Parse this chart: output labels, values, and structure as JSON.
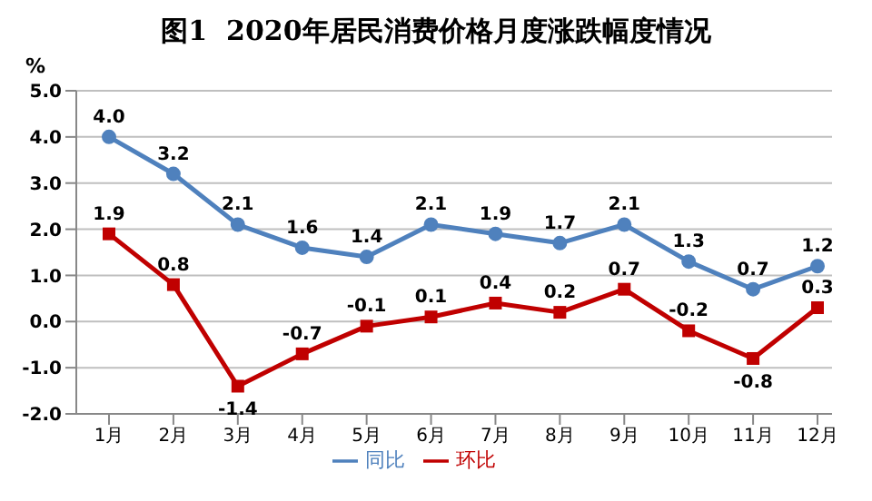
{
  "chart_data": {
    "type": "line",
    "title": "图1  2020年居民消费价格月度涨跌幅度情况",
    "ylabel": "%",
    "categories": [
      "1月",
      "2月",
      "3月",
      "4月",
      "5月",
      "6月",
      "7月",
      "8月",
      "9月",
      "10月",
      "11月",
      "12月"
    ],
    "series": [
      {
        "name": "同比",
        "color": "#4f81bd",
        "marker": "circle",
        "values": [
          4.0,
          3.2,
          2.1,
          1.6,
          1.4,
          2.1,
          1.9,
          1.7,
          2.1,
          1.3,
          0.7,
          1.2
        ],
        "value_labels": [
          "4.0",
          "3.2",
          "2.1",
          "1.6",
          "1.4",
          "2.1",
          "1.9",
          "1.7",
          "2.1",
          "1.3",
          "0.7",
          "1.2"
        ]
      },
      {
        "name": "环比",
        "color": "#c00000",
        "marker": "square",
        "values": [
          1.9,
          0.8,
          -1.4,
          -0.7,
          -0.1,
          0.1,
          0.4,
          0.2,
          0.7,
          -0.2,
          -0.8,
          0.3
        ],
        "value_labels": [
          "1.9",
          "0.8",
          "-1.4",
          "-0.7",
          "-0.1",
          "0.1",
          "0.4",
          "0.2",
          "0.7",
          "-0.2",
          "-0.8",
          "0.3"
        ]
      }
    ],
    "ylim": [
      -2.0,
      5.0
    ],
    "yticks": [
      {
        "value": -2,
        "label": "-2.0"
      },
      {
        "value": -1,
        "label": "-1.0"
      },
      {
        "value": 0,
        "label": "0.0"
      },
      {
        "value": 1,
        "label": "1.0"
      },
      {
        "value": 2,
        "label": "2.0"
      },
      {
        "value": 3,
        "label": "3.0"
      },
      {
        "value": 4,
        "label": "4.0"
      },
      {
        "value": 5,
        "label": "5.0"
      }
    ],
    "grid": "y",
    "legend": "bottom",
    "line_style": "solid"
  }
}
